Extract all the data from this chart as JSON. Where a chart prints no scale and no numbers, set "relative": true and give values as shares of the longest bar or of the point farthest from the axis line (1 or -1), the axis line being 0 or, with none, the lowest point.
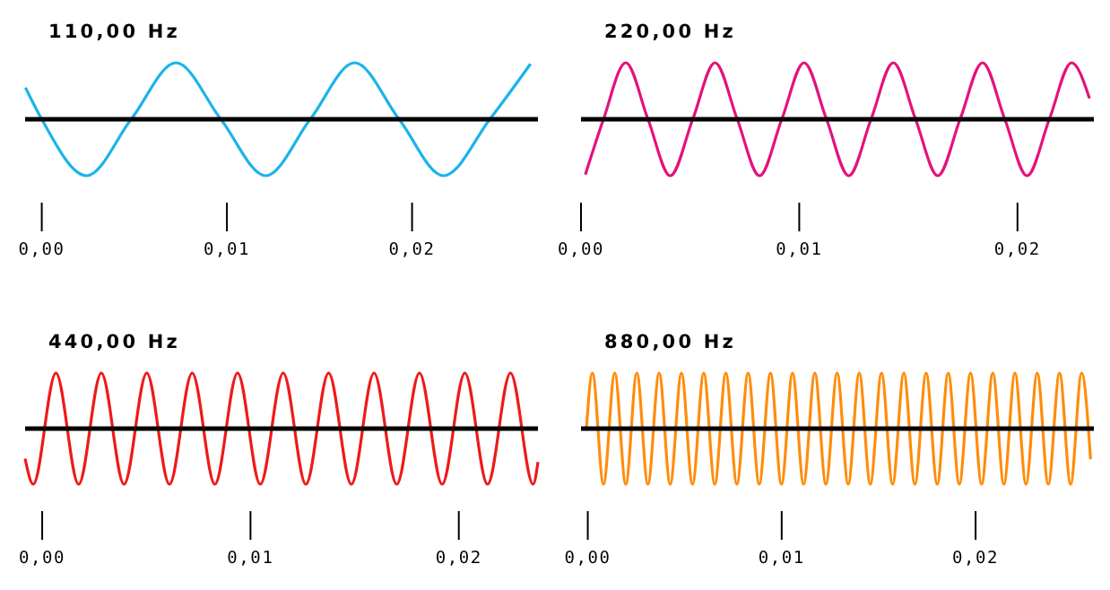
{
  "chart_data": [
    {
      "type": "line",
      "title": "110,00 Hz",
      "relative": true,
      "tick_labels": "x",
      "color": "#1ab4ea",
      "xlim": [
        -0.0009,
        0.0268
      ],
      "xticks": [
        {
          "value": 0,
          "label": "0,00"
        },
        {
          "value": 0.01,
          "label": "0,01"
        },
        {
          "value": 0.02,
          "label": "0,02"
        }
      ],
      "x": [
        -0.00088,
        0,
        0.00242,
        0.00483,
        0.00725,
        0.00967,
        0.0121,
        0.0145,
        0.0169,
        0.0193,
        0.0217,
        0.0242,
        0.0264
      ],
      "values": [
        0.56,
        0,
        -1,
        0,
        1,
        0,
        -1,
        0,
        1,
        0,
        -1,
        0,
        0.98
      ]
    },
    {
      "type": "line",
      "title": "220,00 Hz",
      "relative": true,
      "tick_labels": "x",
      "color": "#e4127c",
      "xlim": [
        0,
        0.0235
      ],
      "xticks": [
        {
          "value": 0,
          "label": "0,00"
        },
        {
          "value": 0.01,
          "label": "0,01"
        },
        {
          "value": 0.02,
          "label": "0,02"
        }
      ],
      "x": [
        0.0002,
        0.00103,
        0.00205,
        0.00307,
        0.00409,
        0.00512,
        0.00614,
        0.00716,
        0.00818,
        0.0092,
        0.01022,
        0.01125,
        0.01227,
        0.01329,
        0.01431,
        0.01533,
        0.01635,
        0.01737,
        0.0184,
        0.01942,
        0.02044,
        0.02146,
        0.02248,
        0.0233
      ],
      "values": [
        -0.98,
        0,
        1,
        0,
        -1,
        0,
        1,
        0,
        -1,
        0,
        1,
        0,
        -1,
        0,
        1,
        0,
        -1,
        0,
        1,
        0,
        -1,
        0,
        1,
        0.37
      ]
    },
    {
      "type": "line",
      "title": "440,00 Hz",
      "relative": true,
      "tick_labels": "x",
      "color": "#ee1a1a",
      "xlim": [
        -0.00082,
        0.0238
      ],
      "xticks": [
        {
          "value": 0,
          "label": "0,00"
        },
        {
          "value": 0.01,
          "label": "0,01"
        },
        {
          "value": 0.02,
          "label": "0,02"
        }
      ],
      "x": [
        -0.00082,
        -0.00043,
        0.00066,
        0.00175,
        0.00284,
        0.00393,
        0.00502,
        0.00611,
        0.0072,
        0.00829,
        0.00938,
        0.01047,
        0.01157,
        0.01266,
        0.01375,
        0.01484,
        0.01593,
        0.01702,
        0.01811,
        0.0192,
        0.02029,
        0.02138,
        0.02248,
        0.02357,
        0.0238
      ],
      "values": [
        -0.54,
        -1,
        1,
        -1,
        1,
        -1,
        1,
        -1,
        1,
        -1,
        1,
        -1,
        1,
        -1,
        1,
        -1,
        1,
        -1,
        1,
        -1,
        1,
        -1,
        1,
        -1,
        -0.6
      ]
    },
    {
      "type": "line",
      "title": "880,00 Hz",
      "relative": true,
      "tick_labels": "x",
      "color": "#ff8c0a",
      "xlim": [
        -0.00035,
        0.0261
      ],
      "xticks": [
        {
          "value": 0,
          "label": "0,00"
        },
        {
          "value": 0.01,
          "label": "0,01"
        },
        {
          "value": 0.02,
          "label": "0,02"
        }
      ],
      "x": [
        -7e-05,
        0.00024,
        0.00081,
        0.00139,
        0.00196,
        0.00253,
        0.0031,
        0.00368,
        0.00425,
        0.00483,
        0.0054,
        0.00598,
        0.00655,
        0.00712,
        0.00769,
        0.00827,
        0.00884,
        0.00942,
        0.00999,
        0.01056,
        0.01113,
        0.01171,
        0.01228,
        0.01286,
        0.01343,
        0.014,
        0.01457,
        0.01515,
        0.01572,
        0.0163,
        0.01687,
        0.01745,
        0.01802,
        0.01859,
        0.01916,
        0.01974,
        0.02031,
        0.02089,
        0.02146,
        0.02203,
        0.0226,
        0.02318,
        0.02375,
        0.02433,
        0.0249,
        0.02547,
        0.02593
      ],
      "values": [
        0,
        1,
        -1,
        1,
        -1,
        1,
        -1,
        1,
        -1,
        1,
        -1,
        1,
        -1,
        1,
        -1,
        1,
        -1,
        1,
        -1,
        1,
        -1,
        1,
        -1,
        1,
        -1,
        1,
        -1,
        1,
        -1,
        1,
        -1,
        1,
        -1,
        1,
        -1,
        1,
        -1,
        1,
        -1,
        1,
        -1,
        1,
        -1,
        1,
        -1,
        1,
        -0.55
      ]
    }
  ]
}
